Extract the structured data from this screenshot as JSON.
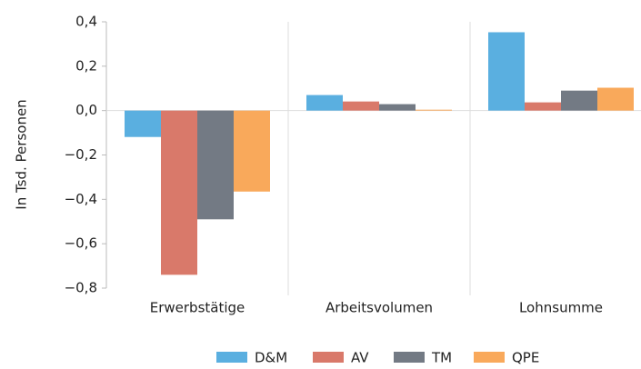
{
  "chart_data": {
    "type": "bar",
    "ylabel": "In Tsd. Personen",
    "categories": [
      "Erwerbstätige",
      "Arbeitsvolumen",
      "Lohnsumme"
    ],
    "series": [
      {
        "name": "D&M",
        "color": "#5aafe0",
        "values": [
          -0.119,
          0.07,
          0.353
        ]
      },
      {
        "name": "AV",
        "color": "#d9796a",
        "values": [
          -0.74,
          0.041,
          0.037
        ]
      },
      {
        "name": "TM",
        "color": "#737a84",
        "values": [
          -0.49,
          0.029,
          0.09
        ]
      },
      {
        "name": "QPE",
        "color": "#f9a95b",
        "values": [
          -0.365,
          0.004,
          0.103
        ]
      }
    ],
    "ylim": [
      -0.8,
      0.4
    ],
    "yticks": [
      {
        "value": 0.4,
        "label": "0,4"
      },
      {
        "value": 0.2,
        "label": "0,2"
      },
      {
        "value": 0,
        "label": "0,0"
      },
      {
        "value": -0.2,
        "label": "−0,2"
      },
      {
        "value": -0.4,
        "label": "−0,4"
      },
      {
        "value": -0.6,
        "label": "−0,6"
      },
      {
        "value": -0.8,
        "label": "−0,8"
      }
    ],
    "grid": true,
    "legend": "bottom"
  }
}
